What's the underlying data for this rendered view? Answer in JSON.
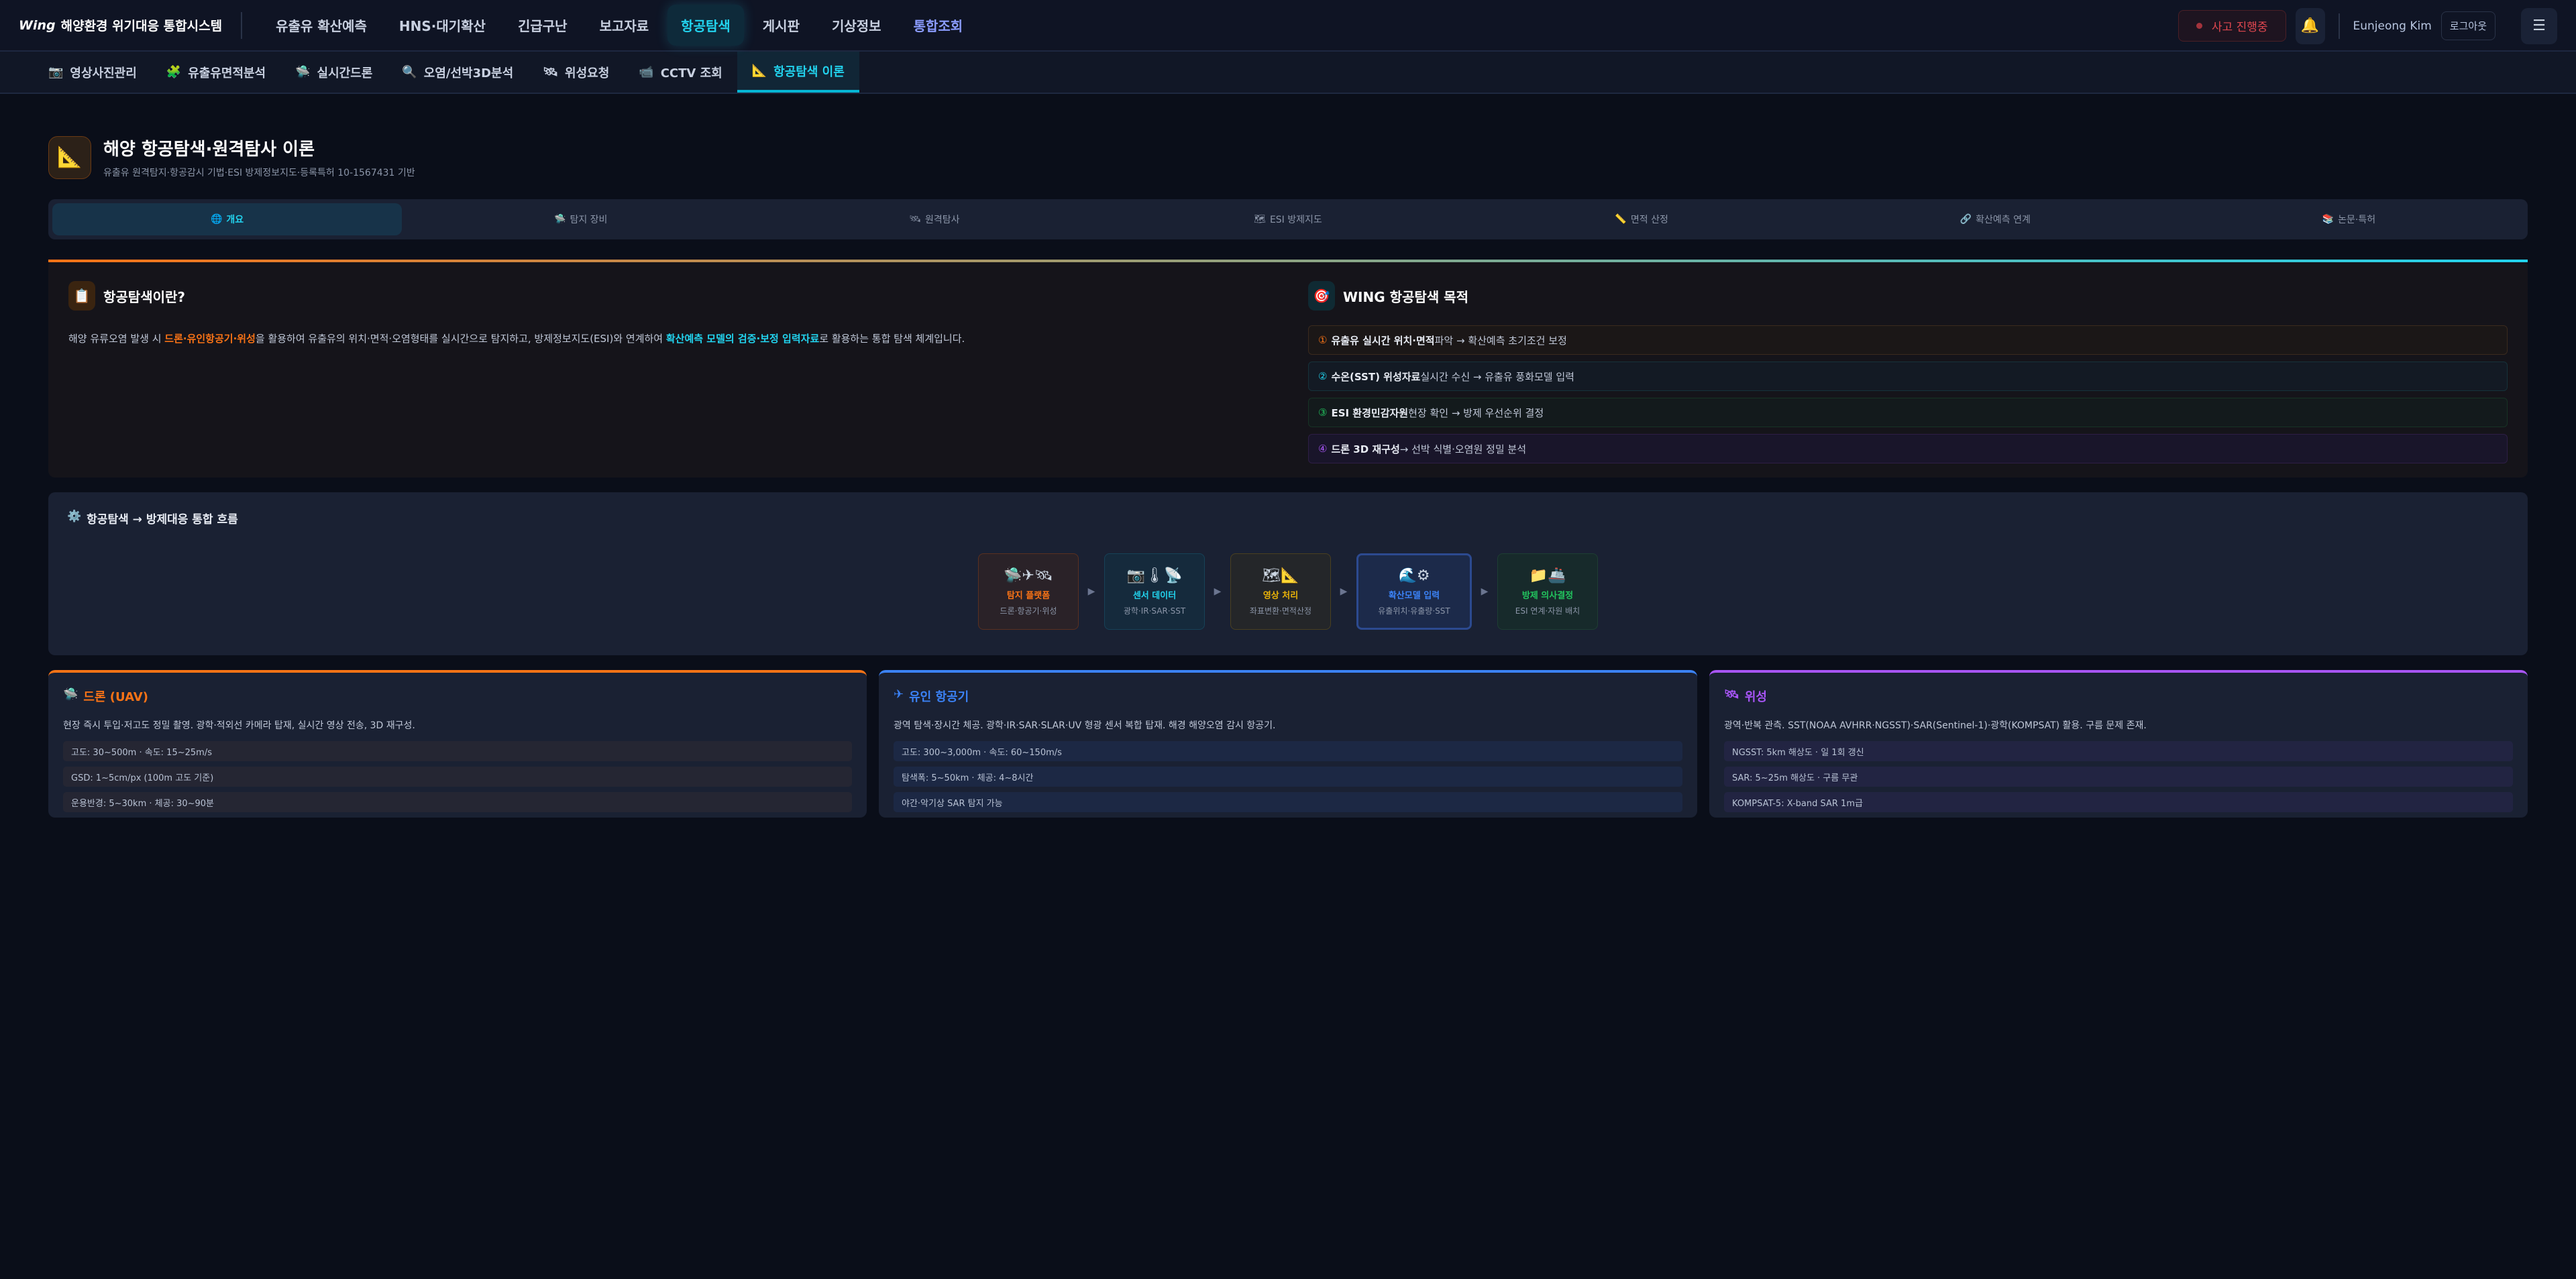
{
  "topnav": {
    "logo_mark": "Wing",
    "title": "해양환경 위기대응 통합시스템",
    "items": [
      {
        "label": "유출유 확산예측"
      },
      {
        "label": "HNS·대기확산"
      },
      {
        "label": "긴급구난"
      },
      {
        "label": "보고자료"
      },
      {
        "label": "항공탐색",
        "active": true
      },
      {
        "label": "게시판"
      },
      {
        "label": "기상정보"
      },
      {
        "label": "통합조회"
      }
    ],
    "incident": "사고 진행중",
    "user": "Eunjeong Kim",
    "logout": "로그아웃"
  },
  "subnav": {
    "items": [
      {
        "icon": "📷",
        "label": "영상사진관리"
      },
      {
        "icon": "🧩",
        "label": "유출유면적분석"
      },
      {
        "icon": "🛸",
        "label": "실시간드론"
      },
      {
        "icon": "🔍",
        "label": "오염/선박3D분석"
      },
      {
        "icon": "🛰",
        "label": "위성요청"
      },
      {
        "icon": "📹",
        "label": "CCTV 조회"
      },
      {
        "icon": "📐",
        "label": "항공탐색 이론",
        "active": true
      }
    ]
  },
  "header": {
    "icon": "📐",
    "title": "해양 항공탐색·원격탐사 이론",
    "subtitle": "유출유 원격탐지·항공감시 기법·ESI 방제정보지도·등록특허 10-1567431 기반"
  },
  "tabs": [
    {
      "icon": "🌐",
      "label": "개요"
    },
    {
      "icon": "🛸",
      "label": "탐지 장비"
    },
    {
      "icon": "🛰",
      "label": "원격탐사"
    },
    {
      "icon": "🗺",
      "label": "ESI 방제지도"
    },
    {
      "icon": "📏",
      "label": "면적 산정"
    },
    {
      "icon": "🔗",
      "label": "확산예측 연계"
    },
    {
      "icon": "📚",
      "label": "논문·특허"
    }
  ],
  "intro": {
    "icon": "📋",
    "title": "항공탐색이란?",
    "text_1": "해양 유류오염 발생 시 ",
    "hl_1": "드론·유인항공기·위성",
    "text_2": "을 활용하여 유출유의 위치·면적·오염형태를 실시간으로 탐지하고, 방제정보지도(ESI)와 연계하여 ",
    "hl_2": "확산예측 모델의 검증·보정 입력자료",
    "text_3": "로 활용하는 통합 탐색 체계입니다."
  },
  "purpose": {
    "icon": "🎯",
    "title": "WING 항공탐색 목적",
    "items": [
      {
        "num": "①",
        "bold": "유출유 실시간 위치·면적",
        "rest": " 파악 → 확산예측 초기조건 보정",
        "color": "#f97316"
      },
      {
        "num": "②",
        "bold": "수온(SST) 위성자료",
        "rest": " 실시간 수신 → 유출유 풍화모델 입력",
        "color": "#22d3ee"
      },
      {
        "num": "③",
        "bold": "ESI 환경민감자원",
        "rest": " 현장 확인 → 방제 우선순위 결정",
        "color": "#22c55e"
      },
      {
        "num": "④",
        "bold": "드론 3D 재구성",
        "rest": " → 선박 식별·오염원 정밀 분석",
        "color": "#a855f7",
        "prefix": "드론 "
      }
    ]
  },
  "flow": {
    "icon": "⚙️",
    "title": "항공탐색 → 방제대응 통합 흐름",
    "steps": [
      {
        "icons": "🛸✈🛰",
        "title": "탐지 플랫폼",
        "desc": "드론·항공기·위성",
        "color": "#f97316"
      },
      {
        "icons": "📷🌡📡",
        "title": "센서 데이터",
        "desc": "광학·IR·SAR·SST",
        "color": "#22d3ee"
      },
      {
        "icons": "🗺📐",
        "title": "영상 처리",
        "desc": "좌표변환·면적산정",
        "color": "#eab308"
      },
      {
        "icons": "🌊⚙",
        "title": "확산모델 입력",
        "desc": "유출위치·유출량·SST",
        "color": "#3b82f6"
      },
      {
        "icons": "📁🚢",
        "title": "방제 의사결정",
        "desc": "ESI 연계·자원 배치",
        "color": "#22c55e"
      }
    ]
  },
  "platforms": [
    {
      "icon": "🛸",
      "title": "드론 (UAV)",
      "color": "#f97316",
      "desc": "현장 즉시 투입·저고도 정밀 촬영. 광학·적외선 카메라 탑재, 실시간 영상 전송, 3D 재구성.",
      "specs": [
        "고도: 30~500m · 속도: 15~25m/s",
        "GSD: 1~5cm/px (100m 고도 기준)",
        "운용반경: 5~30km · 체공: 30~90분"
      ]
    },
    {
      "icon": "✈",
      "title": "유인 항공기",
      "color": "#3b82f6",
      "desc": "광역 탐색·장시간 체공. 광학·IR·SAR·SLAR·UV 형광 센서 복합 탑재. 해경 해양오염 감시 항공기.",
      "specs": [
        "고도: 300~3,000m · 속도: 60~150m/s",
        "탐색폭: 5~50km · 체공: 4~8시간",
        "야간·악기상 SAR 탐지 가능"
      ]
    },
    {
      "icon": "🛰",
      "title": "위성",
      "color": "#a855f7",
      "desc": "광역·반복 관측. SST(NOAA AVHRR·NGSST)·SAR(Sentinel-1)·광학(KOMPSAT) 활용. 구름 문제 존재.",
      "specs": [
        "NGSST: 5km 해상도 · 일 1회 갱신",
        "SAR: 5~25m 해상도 · 구름 무관",
        "KOMPSAT-5: X-band SAR 1m급"
      ]
    }
  ]
}
